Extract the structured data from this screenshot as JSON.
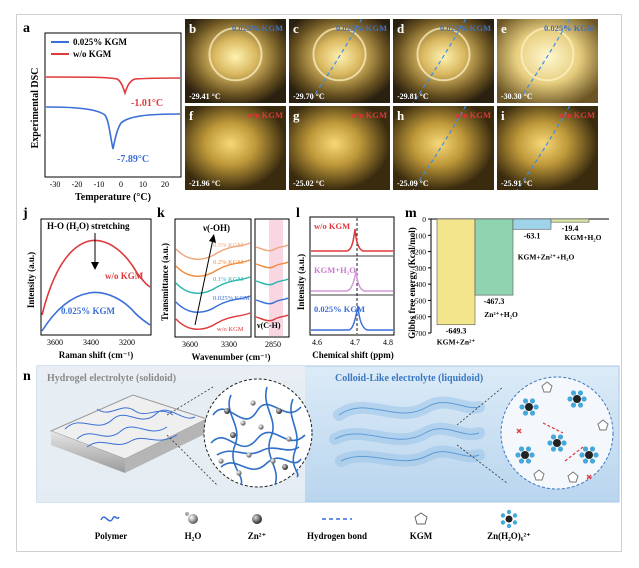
{
  "panels": {
    "a": {
      "letter": "a",
      "ylabel": "Experimental DSC",
      "xlabel": "Temperature (°C)",
      "legend": [
        "0.025% KGM",
        "w/o KGM"
      ],
      "ann_red": "-1.01°C",
      "ann_blue": "-7.89°C",
      "xticks": [
        "-30",
        "-20",
        "-10",
        "0",
        "10",
        "20"
      ]
    },
    "photos": [
      {
        "letter": "b",
        "label": "0.025% KGM",
        "temp": "-29.41 °C"
      },
      {
        "letter": "c",
        "label": "0.025% KGM",
        "temp": "-29.70 °C"
      },
      {
        "letter": "d",
        "label": "0.025% KGM",
        "temp": "-29.81 °C"
      },
      {
        "letter": "e",
        "label": "0.025% KGM",
        "temp": "-30.30 °C"
      },
      {
        "letter": "f",
        "label": "w/o KGM",
        "temp": "-21.96 °C"
      },
      {
        "letter": "g",
        "label": "w/o KGM",
        "temp": "-25.02 °C"
      },
      {
        "letter": "h",
        "label": "w/o KGM",
        "temp": "-25.09 °C"
      },
      {
        "letter": "i",
        "label": "w/o KGM",
        "temp": "-25.91 °C"
      }
    ],
    "j": {
      "letter": "j",
      "title": "H-O (H₂O) stretching",
      "ylabel": "Intensity (a.u.)",
      "xlabel": "Raman shift (cm⁻¹)",
      "label_red": "w/o KGM",
      "label_blue": "0.025% KGM",
      "xticks": [
        "3600",
        "3400",
        "3200"
      ]
    },
    "k": {
      "letter": "k",
      "title": "ν(-OH)",
      "ylabel": "Transmittance (a.u.)",
      "xlabel": "Wavenumber (cm⁻¹)",
      "series": [
        "0.5% KGM",
        "0.2% KGM",
        "0.1% KGM",
        "0.025% KGM",
        "w/o KGM"
      ],
      "ch_label": "ν(C-H)",
      "xticks": [
        "3600",
        "3300",
        "2850"
      ]
    },
    "l": {
      "letter": "l",
      "ylabel": "Intensity (a.u.)",
      "xlabel": "Chemical shift (ppm)",
      "labels": [
        "w/o KGM",
        "KGM+H₂O",
        "0.025% KGM"
      ],
      "xticks": [
        "4.6",
        "4.7",
        "4.8"
      ]
    },
    "m": {
      "letter": "m",
      "ylabel": "Gibbs free energy (Kcal/mol)",
      "yticks": [
        "0",
        "-100",
        "-200",
        "-300",
        "-400",
        "-500",
        "-600",
        "-700"
      ],
      "bars": [
        {
          "value": "-649.3",
          "label": "KGM+Zn²⁺",
          "color": "#f2e58c"
        },
        {
          "value": "-467.3",
          "label": "Zn²⁺+H₂O",
          "color": "#8fd3b0"
        },
        {
          "value": "-63.1",
          "label": "KGM+Zn²⁺+H₂O",
          "color": "#9fd3ea"
        },
        {
          "value": "-19.4",
          "label": "KGM+H₂O",
          "color": "#d7e6a1"
        }
      ]
    },
    "n": {
      "letter": "n",
      "left_title": "Hydrogel electrolyte (solidoid)",
      "right_title": "Colloid-Like electrolyte (liquidoid)",
      "legend": [
        {
          "name": "polymer",
          "label": "Polymer"
        },
        {
          "name": "h2o",
          "label": "H₂O"
        },
        {
          "name": "zn",
          "label": "Zn²⁺"
        },
        {
          "name": "hbond",
          "label": "Hydrogen bond"
        },
        {
          "name": "kgm",
          "label": "KGM"
        },
        {
          "name": "zn-solvate",
          "label": "Zn(H₂O)₆²⁺"
        }
      ]
    }
  }
}
